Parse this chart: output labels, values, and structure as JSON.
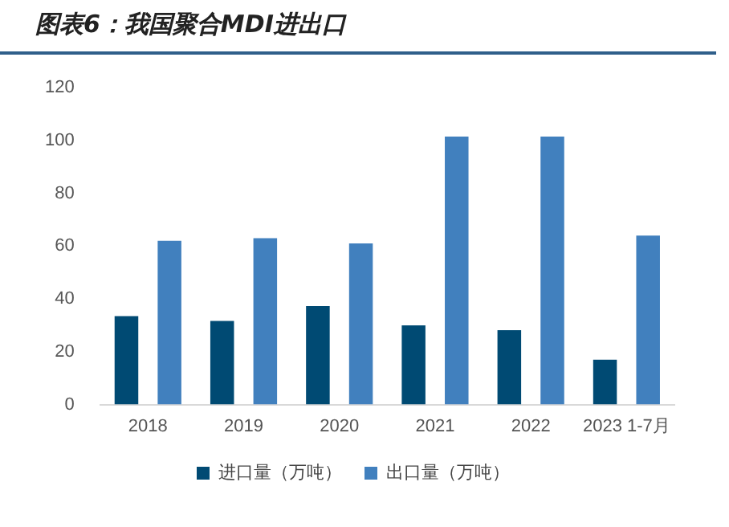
{
  "chart_data": {
    "type": "bar",
    "title": "图表6：我国聚合MDI进出口",
    "categories": [
      "2018",
      "2019",
      "2020",
      "2021",
      "2022",
      "2023 1-7月"
    ],
    "series": [
      {
        "name": "进口量（万吨）",
        "color": "#004a73",
        "values": [
          33.5,
          31.7,
          37.3,
          30,
          28.2,
          17
        ]
      },
      {
        "name": "出口量（万吨）",
        "color": "#4180be",
        "values": [
          62,
          63,
          61,
          101.5,
          101.5,
          64
        ]
      }
    ],
    "ylim": [
      0,
      120
    ],
    "yticks": [
      0,
      20,
      40,
      60,
      80,
      100,
      120
    ],
    "grid": false,
    "legend": "bottom"
  }
}
